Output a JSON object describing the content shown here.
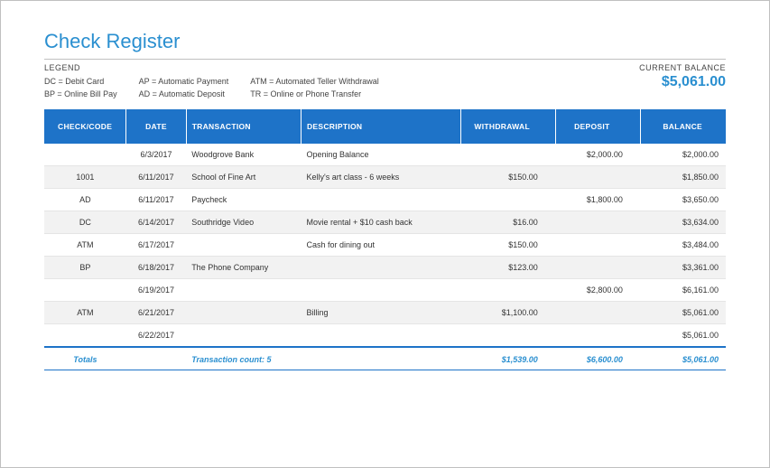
{
  "title": "Check Register",
  "legend": {
    "heading": "LEGEND",
    "col1_line1": "DC = Debit Card",
    "col1_line2": "BP = Online Bill Pay",
    "col2_line1": "AP = Automatic Payment",
    "col2_line2": "AD = Automatic Deposit",
    "col3_line1": "ATM = Automated Teller Withdrawal",
    "col3_line2": "TR = Online or Phone Transfer"
  },
  "balance": {
    "heading": "CURRENT BALANCE",
    "amount": "$5,061.00"
  },
  "table": {
    "headers": {
      "code": "CHECK/CODE",
      "date": "DATE",
      "transaction": "TRANSACTION",
      "description": "DESCRIPTION",
      "withdrawal": "WITHDRAWAL",
      "deposit": "DEPOSIT",
      "balance": "BALANCE"
    },
    "rows": [
      {
        "code": "",
        "date": "6/3/2017",
        "transaction": "Woodgrove Bank",
        "description": "Opening Balance",
        "withdrawal": "",
        "deposit": "$2,000.00",
        "balance": "$2,000.00"
      },
      {
        "code": "1001",
        "date": "6/11/2017",
        "transaction": "School of Fine Art",
        "description": "Kelly's art class - 6 weeks",
        "withdrawal": "$150.00",
        "deposit": "",
        "balance": "$1,850.00"
      },
      {
        "code": "AD",
        "date": "6/11/2017",
        "transaction": "Paycheck",
        "description": "",
        "withdrawal": "",
        "deposit": "$1,800.00",
        "balance": "$3,650.00"
      },
      {
        "code": "DC",
        "date": "6/14/2017",
        "transaction": "Southridge Video",
        "description": "Movie rental + $10 cash back",
        "withdrawal": "$16.00",
        "deposit": "",
        "balance": "$3,634.00"
      },
      {
        "code": "ATM",
        "date": "6/17/2017",
        "transaction": "",
        "description": "Cash for dining out",
        "withdrawal": "$150.00",
        "deposit": "",
        "balance": "$3,484.00"
      },
      {
        "code": "BP",
        "date": "6/18/2017",
        "transaction": "The Phone Company",
        "description": "",
        "withdrawal": "$123.00",
        "deposit": "",
        "balance": "$3,361.00"
      },
      {
        "code": "",
        "date": "6/19/2017",
        "transaction": "",
        "description": "",
        "withdrawal": "",
        "deposit": "$2,800.00",
        "balance": "$6,161.00"
      },
      {
        "code": "ATM",
        "date": "6/21/2017",
        "transaction": "",
        "description": "Billing",
        "withdrawal": "$1,100.00",
        "deposit": "",
        "balance": "$5,061.00"
      },
      {
        "code": "",
        "date": "6/22/2017",
        "transaction": "",
        "description": "",
        "withdrawal": "",
        "deposit": "",
        "balance": "$5,061.00"
      }
    ],
    "footer": {
      "totals_label": "Totals",
      "transaction_count": "Transaction count: 5",
      "withdrawal": "$1,539.00",
      "deposit": "$6,600.00",
      "balance": "$5,061.00"
    }
  },
  "colors": {
    "accent": "#2a8fd0",
    "header_bg": "#1e73c8",
    "row_alt": "#f2f2f2",
    "border": "#c0c0c0"
  }
}
